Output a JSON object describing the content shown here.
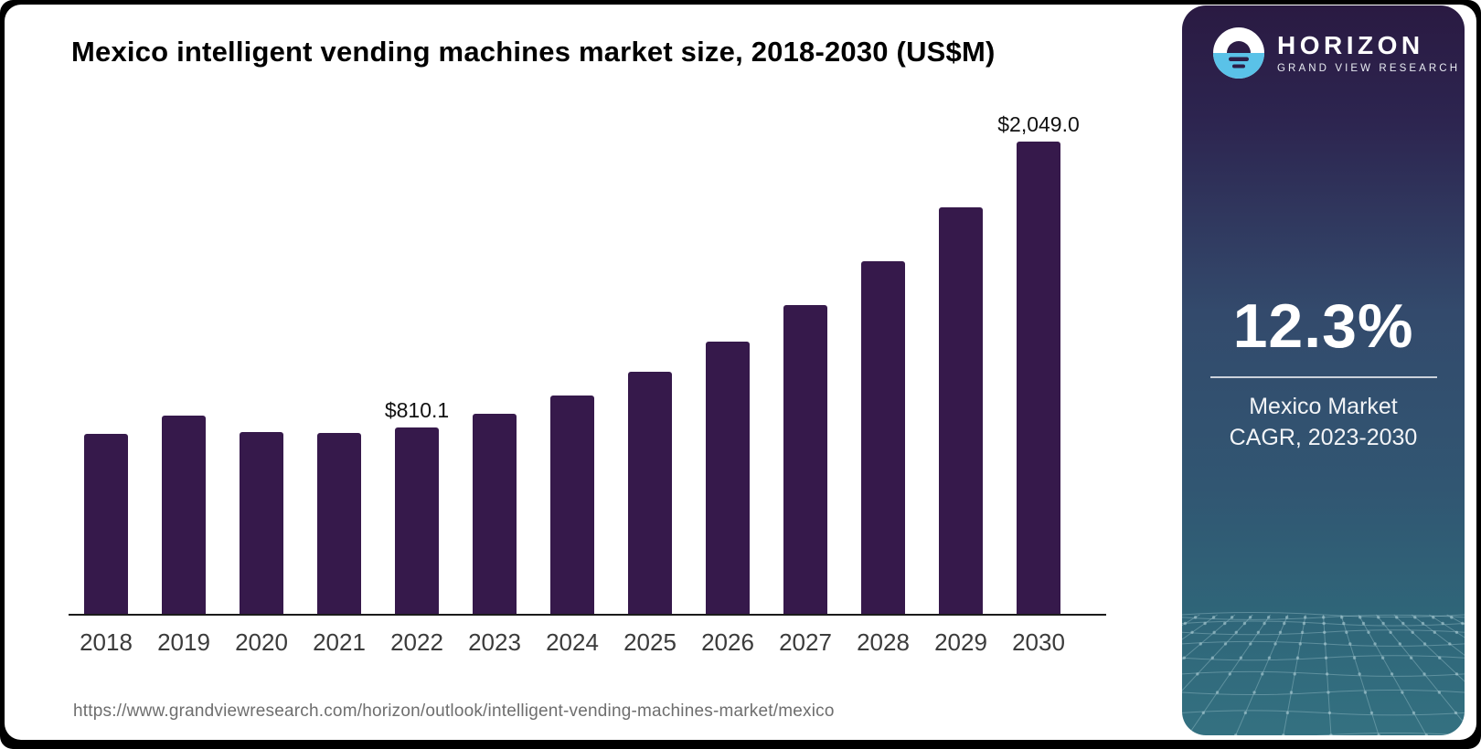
{
  "chart": {
    "title": "Mexico intelligent vending machines market size, 2018-2030 (US$M)",
    "source_url": "https://www.grandviewresearch.com/horizon/outlook/intelligent-vending-machines-market/mexico"
  },
  "chart_data": {
    "type": "bar",
    "title": "Mexico intelligent vending machines market size, 2018-2030 (US$M)",
    "unit": "US$M",
    "categories": [
      "2018",
      "2019",
      "2020",
      "2021",
      "2022",
      "2023",
      "2024",
      "2025",
      "2026",
      "2027",
      "2028",
      "2029",
      "2030"
    ],
    "values": [
      780,
      860,
      790,
      785,
      810.1,
      868,
      947,
      1050,
      1180,
      1340,
      1530,
      1765,
      2049.0
    ],
    "value_labels": {
      "2022": "$810.1",
      "2030": "$2,049.0"
    },
    "xlabel": "",
    "ylabel": "",
    "ylim": [
      0,
      2100
    ],
    "grid": false,
    "legend": false,
    "bar_color": "#36194b"
  },
  "sidebar": {
    "brand_name": "HORIZON",
    "brand_subtitle": "GRAND VIEW RESEARCH",
    "cagr_value": "12.3%",
    "cagr_label_line1": "Mexico Market",
    "cagr_label_line2": "CAGR, 2023-2030",
    "colors": {
      "gradient_top": "#2a1a42",
      "gradient_mid": "#334a6c",
      "gradient_bottom": "#347181",
      "logo_blue": "#5ac2e8",
      "logo_dark": "#2d1d46",
      "text": "#ffffff"
    }
  }
}
